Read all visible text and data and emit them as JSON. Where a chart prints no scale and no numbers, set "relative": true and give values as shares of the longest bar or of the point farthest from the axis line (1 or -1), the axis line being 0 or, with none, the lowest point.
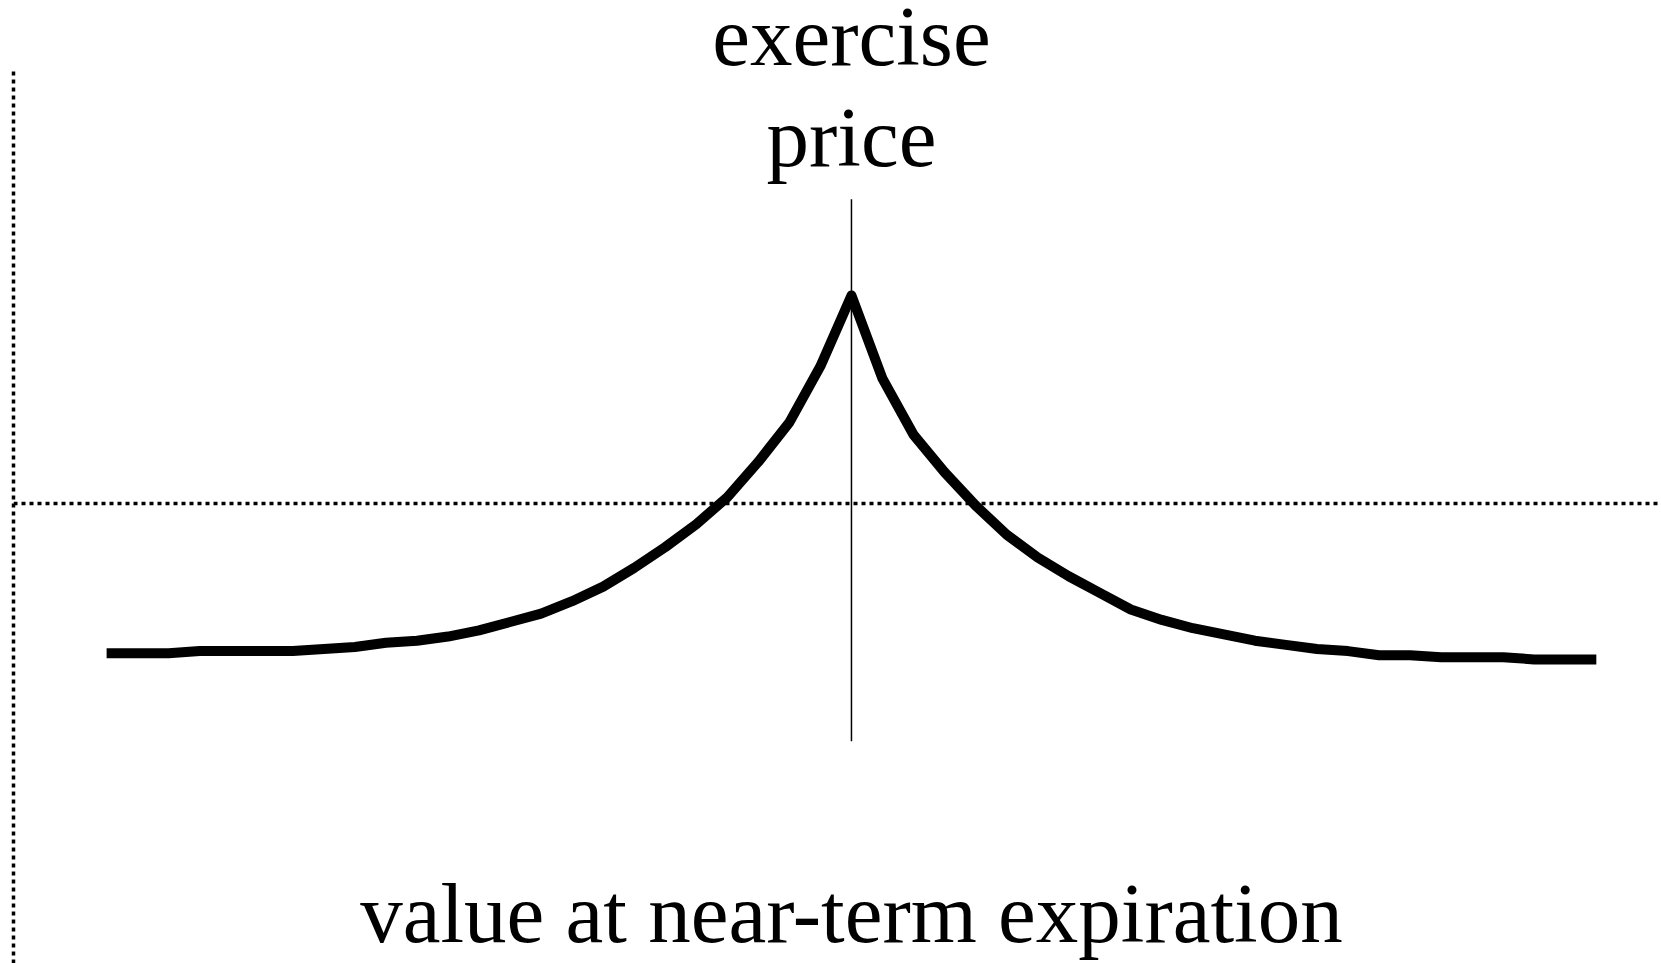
{
  "chart_data": {
    "type": "line",
    "relative": true,
    "categories": [
      null,
      null,
      null,
      null,
      null,
      null,
      null,
      null,
      null,
      null,
      null,
      null,
      null,
      null,
      null,
      null,
      null,
      null,
      null,
      null,
      null,
      null,
      null,
      null,
      null,
      null,
      null,
      null,
      null,
      null,
      null,
      null,
      null,
      null,
      null,
      null,
      null,
      null,
      null,
      null,
      null,
      null,
      null,
      null,
      null,
      null,
      null,
      null,
      null
    ],
    "series": [
      {
        "color": "#000000",
        "values": [
          -0.72,
          -0.72,
          -0.72,
          -0.71,
          -0.71,
          -0.71,
          -0.71,
          -0.7,
          -0.69,
          -0.67,
          -0.66,
          -0.64,
          -0.61,
          -0.57,
          -0.53,
          -0.47,
          -0.4,
          -0.31,
          -0.21,
          -0.1,
          0.03,
          0.2,
          0.39,
          0.66,
          1,
          0.6,
          0.33,
          0.15,
          -0.01,
          -0.15,
          -0.26,
          -0.35,
          -0.43,
          -0.51,
          -0.56,
          -0.6,
          -0.63,
          -0.66,
          -0.68,
          -0.7,
          -0.71,
          -0.73,
          -0.73,
          -0.74,
          -0.74,
          -0.74,
          -0.75,
          -0.75,
          -0.75
        ]
      }
    ],
    "ref_lines": [
      {
        "axis": "y",
        "value": 0,
        "color": "#000000",
        "line_style": "dotted"
      }
    ],
    "annotations": [
      "exercise\nprice",
      "value at near-term expiration"
    ]
  }
}
